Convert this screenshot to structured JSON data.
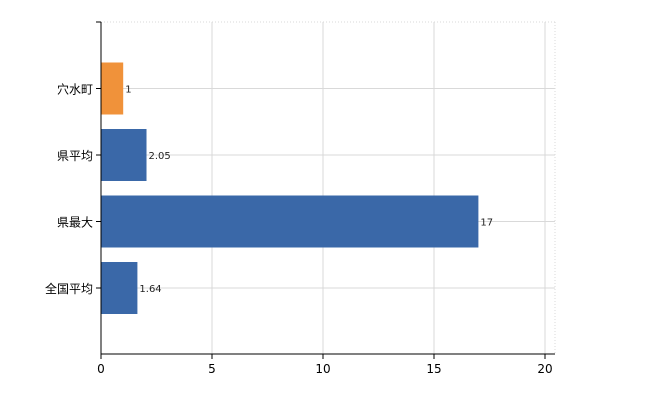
{
  "chart_data": {
    "type": "bar",
    "orientation": "horizontal",
    "categories": [
      "穴水町",
      "県平均",
      "県最大",
      "全国平均"
    ],
    "values": [
      1,
      2.05,
      17,
      1.64
    ],
    "value_labels": [
      "1",
      "2.05",
      "17",
      "1.64"
    ],
    "bar_colors": [
      "#f0923a",
      "#3a68a8",
      "#3a68a8",
      "#3a68a8"
    ],
    "xlim": [
      0,
      20
    ],
    "x_ticks": [
      0,
      5,
      10,
      15,
      20
    ],
    "x_tick_labels": [
      "0",
      "5",
      "10",
      "15",
      "20"
    ],
    "grid": true,
    "legend": "none"
  }
}
